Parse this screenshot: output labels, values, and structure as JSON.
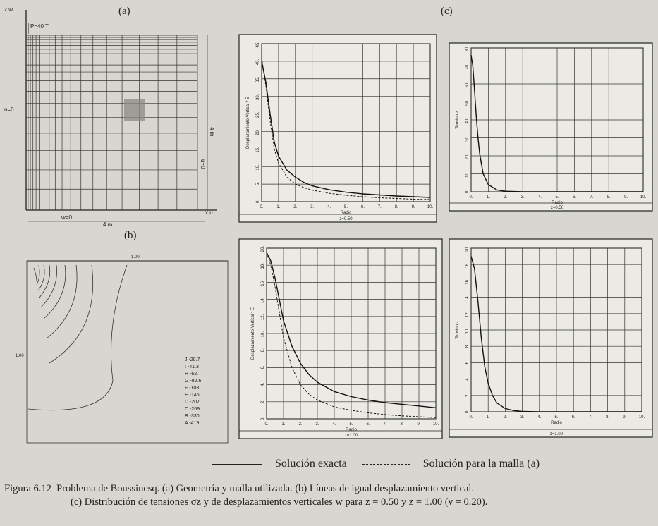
{
  "figure": {
    "panel_a_label": "(a)",
    "panel_b_label": "(b)",
    "panel_c_label": "(c)"
  },
  "panel_a": {
    "axis_zw": "z,w",
    "load": "P=40 T",
    "bc_left": "u=0",
    "height_dim": "4 m",
    "bc_right": "u=0",
    "bc_bottom": "w=0",
    "width_dim": "4 m",
    "axis_xu": "x,u"
  },
  "panel_b": {
    "top_dim": "1.00",
    "side_dim": "1.00",
    "contour_legend": [
      "J -20.7",
      "I -41.3",
      "H -62.",
      "G -82.6",
      "F -103.",
      "E -145.",
      "D -207.",
      "C -269.",
      "B -330.",
      "A -419."
    ]
  },
  "legend": {
    "exact": "Solución exacta",
    "mesh": "Solución para la malla (a)"
  },
  "caption": {
    "line1_prefix": "Figura 6.12",
    "line1_text": "Problema de Boussinesq.   (a) Geometría y malla utilizada.   (b) Líneas de igual desplazamiento vertical.",
    "line2_text": "(c) Distribución de tensiones σz y de desplazamientos verticales w para z = 0.50 y z = 1.00 (ν = 0.20)."
  },
  "chart_data": [
    {
      "type": "line",
      "xlabel": "Radio",
      "ylabel": "Desplazamiento Vertical * E",
      "subtitle": "z=0.50",
      "xlim": [
        0,
        10
      ],
      "ylim": [
        0,
        45
      ],
      "xticks": [
        "0.",
        "1.",
        "2.",
        "3.",
        "4.",
        "5.",
        "6.",
        "7.",
        "8.",
        "9.",
        "10."
      ],
      "yticks": [
        "0.",
        "5.",
        "10.",
        "15.",
        "20.",
        "25.",
        "30.",
        "35.",
        "40.",
        "45."
      ],
      "series": [
        {
          "style": "solid",
          "x": [
            0,
            0.25,
            0.5,
            0.75,
            1,
            1.5,
            2,
            2.5,
            3,
            4,
            5,
            6,
            7,
            8,
            9,
            10
          ],
          "y": [
            40,
            34,
            25,
            17,
            13,
            9,
            7,
            5.5,
            4.5,
            3.4,
            2.7,
            2.2,
            1.9,
            1.6,
            1.4,
            1.2
          ]
        },
        {
          "style": "dashed",
          "x": [
            0,
            0.25,
            0.5,
            0.75,
            1,
            1.5,
            2,
            2.5,
            3,
            4,
            5,
            6,
            7,
            8,
            9,
            10
          ],
          "y": [
            41,
            33,
            23,
            15,
            11,
            7,
            5,
            4,
            3.3,
            2.4,
            1.8,
            1.4,
            1.1,
            0.9,
            0.7,
            0.6
          ]
        }
      ]
    },
    {
      "type": "line",
      "xlabel": "Radio",
      "ylabel": "Tension z",
      "subtitle": "z=0.50",
      "xlim": [
        0,
        10
      ],
      "ylim": [
        0,
        80
      ],
      "xticks": [
        "0.",
        "1.",
        "2.",
        "3.",
        "4.",
        "5.",
        "6.",
        "7.",
        "8.",
        "9.",
        "10."
      ],
      "yticks": [
        "0.",
        "10.",
        "20.",
        "30.",
        "40.",
        "50.",
        "60.",
        "70.",
        "80."
      ],
      "series": [
        {
          "style": "solid",
          "x": [
            0,
            0.1,
            0.2,
            0.3,
            0.4,
            0.5,
            0.7,
            1,
            1.5,
            2,
            3,
            10
          ],
          "y": [
            76,
            70,
            56,
            42,
            30,
            21,
            10,
            4,
            1,
            0.3,
            0.05,
            0
          ]
        }
      ]
    },
    {
      "type": "line",
      "xlabel": "Radio",
      "ylabel": "Desplazamiento Vertical * E",
      "subtitle": "z=1.00",
      "xlim": [
        0,
        10
      ],
      "ylim": [
        0,
        20
      ],
      "xticks": [
        "0.",
        "1.",
        "2.",
        "3.",
        "4.",
        "5.",
        "6.",
        "7.",
        "8.",
        "9.",
        "10."
      ],
      "yticks": [
        "0.",
        "2.",
        "4.",
        "6.",
        "8.",
        "10.",
        "12.",
        "14.",
        "16.",
        "18.",
        "20."
      ],
      "series": [
        {
          "style": "solid",
          "x": [
            0,
            0.25,
            0.5,
            0.75,
            1,
            1.5,
            2,
            2.5,
            3,
            4,
            5,
            6,
            7,
            8,
            9,
            10
          ],
          "y": [
            19.5,
            18.5,
            16.5,
            14,
            11.5,
            8.5,
            6.5,
            5.2,
            4.3,
            3.2,
            2.6,
            2.2,
            1.9,
            1.7,
            1.5,
            1.3
          ]
        },
        {
          "style": "dashed",
          "x": [
            0,
            0.25,
            0.5,
            0.75,
            1,
            1.5,
            2,
            2.5,
            3,
            4,
            5,
            6,
            7,
            8,
            9,
            10
          ],
          "y": [
            19.5,
            18,
            15.5,
            12.5,
            9.5,
            6,
            4,
            2.9,
            2.2,
            1.4,
            1,
            0.7,
            0.5,
            0.35,
            0.25,
            0.15
          ]
        }
      ]
    },
    {
      "type": "line",
      "xlabel": "Radio",
      "ylabel": "Tension z",
      "subtitle": "z=1.00",
      "xlim": [
        0,
        10
      ],
      "ylim": [
        0,
        20
      ],
      "xticks": [
        "0.",
        "1.",
        "2.",
        "3.",
        "4.",
        "5.",
        "6.",
        "7.",
        "8.",
        "9.",
        "10."
      ],
      "yticks": [
        "0.",
        "2.",
        "4.",
        "6.",
        "8.",
        "10.",
        "12.",
        "14.",
        "16.",
        "18.",
        "20."
      ],
      "series": [
        {
          "style": "solid",
          "x": [
            0,
            0.2,
            0.4,
            0.6,
            0.8,
            1,
            1.25,
            1.5,
            2,
            2.5,
            3,
            4,
            10
          ],
          "y": [
            19,
            17.5,
            13.5,
            9,
            5.5,
            3.5,
            2,
            1.1,
            0.4,
            0.15,
            0.05,
            0,
            0
          ]
        }
      ]
    }
  ]
}
